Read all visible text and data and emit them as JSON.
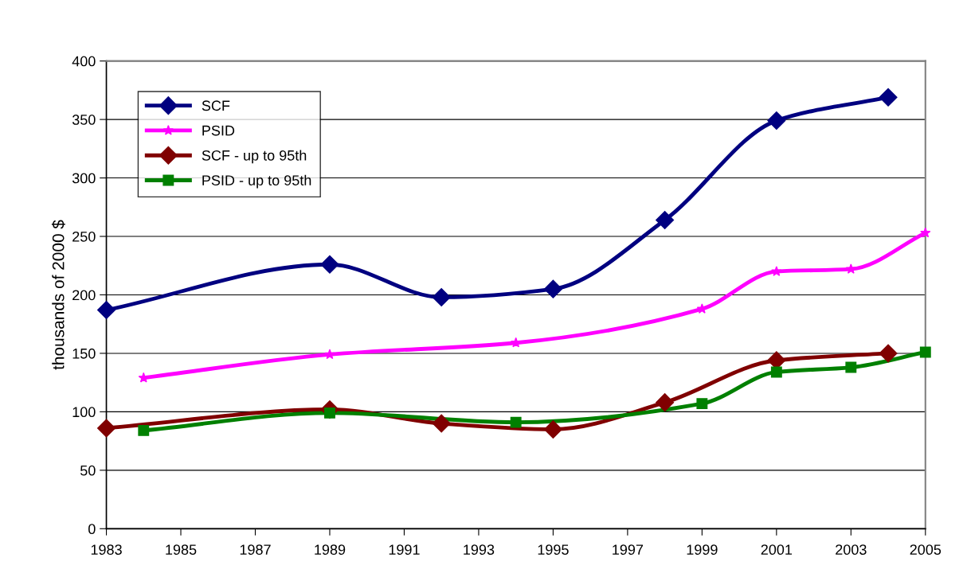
{
  "chart_data": {
    "type": "line",
    "ylabel": "thousands of 2000 $",
    "xlim": [
      1983,
      2005
    ],
    "xticks": [
      1983,
      1985,
      1987,
      1989,
      1991,
      1993,
      1995,
      1997,
      1999,
      2001,
      2003,
      2005
    ],
    "ylim": [
      0,
      400
    ],
    "yticks": [
      0,
      50,
      100,
      150,
      200,
      250,
      300,
      350,
      400
    ],
    "grid": "y",
    "legend": "top left",
    "series": [
      {
        "name": "SCF",
        "color": "#000080",
        "marker": "diamond",
        "x": [
          1983,
          1989,
          1992,
          1995,
          1998,
          2001,
          2004
        ],
        "values": [
          187,
          226,
          198,
          205,
          264,
          349,
          369
        ]
      },
      {
        "name": "PSID",
        "color": "#ff00ff",
        "marker": "star",
        "x": [
          1984,
          1989,
          1994,
          1999,
          2001,
          2003,
          2005
        ],
        "values": [
          129,
          149,
          159,
          188,
          220,
          222,
          253
        ]
      },
      {
        "name": "SCF - up to 95th",
        "color": "#800000",
        "marker": "diamond",
        "x": [
          1983,
          1989,
          1992,
          1995,
          1998,
          2001,
          2004
        ],
        "values": [
          86,
          102,
          90,
          85,
          108,
          144,
          150
        ]
      },
      {
        "name": "PSID - up to 95th",
        "color": "#008000",
        "marker": "square",
        "x": [
          1984,
          1989,
          1994,
          1999,
          2001,
          2003,
          2005
        ],
        "values": [
          84,
          99,
          91,
          107,
          134,
          138,
          151
        ]
      }
    ]
  }
}
